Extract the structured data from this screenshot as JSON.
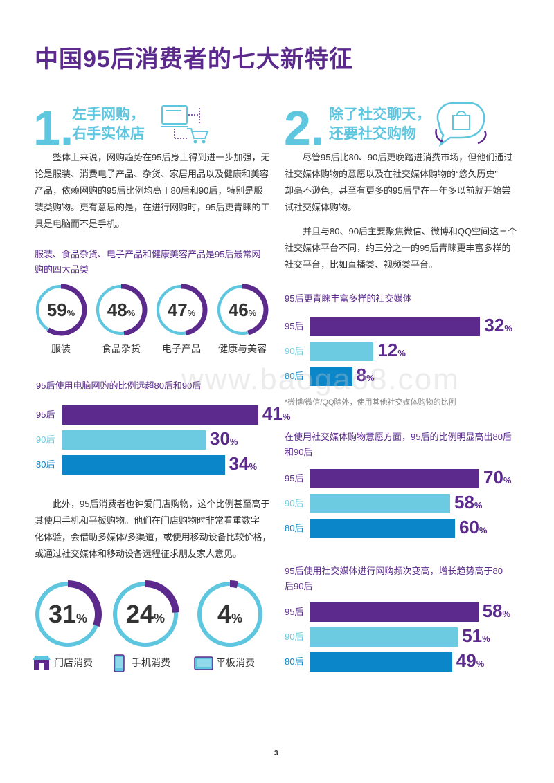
{
  "title": "中国95后消费者的七大新特征",
  "section1": {
    "num": "1.",
    "head_line1": "左手网购，",
    "head_line2": "右手实体店",
    "para1": [
      "整体上来说，网购趋势在95后身上得到进一步加强，无",
      "论是服装、消费电子产品、杂货、家居用品以及健康和美容",
      "产品，依赖网购的95后比例均高于80后和90后，特别是服",
      "装类购物。更有意思的是，在进行网购时，95后更青睐的工",
      "具是电脑而不是手机。"
    ],
    "chart1_title": [
      "服装、食品杂货、电子产品和健康美容产品是95后最常网",
      "购的四大品类"
    ],
    "circles": [
      {
        "value": "59",
        "unit": "%",
        "label": "服装",
        "fraction": 0.59
      },
      {
        "value": "48",
        "unit": "%",
        "label": "食品杂货",
        "fraction": 0.48
      },
      {
        "value": "47",
        "unit": "%",
        "label": "电子产品",
        "fraction": 0.47
      },
      {
        "value": "46",
        "unit": "%",
        "label": "健康与美容",
        "fraction": 0.46
      }
    ],
    "chart2_title": "95后使用电脑网购的比例远超80后和90后",
    "chart2_bars": [
      {
        "label": "95后",
        "value": "41",
        "unit": "%",
        "num": 41
      },
      {
        "label": "90后",
        "value": "30",
        "unit": "%",
        "num": 30
      },
      {
        "label": "80后",
        "value": "34",
        "unit": "%",
        "num": 34
      }
    ],
    "para2": [
      "此外，95后消费者也钟爱门店购物，这个比例甚至高于",
      "其使用手机和平板购物。他们在门店购物时非常看重数字",
      "化体验，会借助多媒体/多渠道，或使用移动设备比较价格，",
      "或通过社交媒体和移动设备远程征求朋友家人意见。"
    ],
    "circles2": [
      {
        "value": "31",
        "unit": "%",
        "label": "门店消费",
        "icon": "store-icon",
        "fraction": 0.31
      },
      {
        "value": "24",
        "unit": "%",
        "label": "手机消费",
        "icon": "phone-icon",
        "fraction": 0.24
      },
      {
        "value": "4",
        "unit": "%",
        "label": "平板消费",
        "icon": "tablet-icon",
        "fraction": 0.04
      }
    ]
  },
  "section2": {
    "num": "2.",
    "head_line1": "除了社交聊天，",
    "head_line2": "还要社交购物",
    "para1": [
      "尽管95后比80、90后更晚踏进消费市场，但他们通过",
      "社交媒体购物的意愿以及在社交媒体购物的“悠久历史”",
      "却毫不逊色，甚至有更多的95后早在一年多以前就开始尝",
      "试社交媒体购物。"
    ],
    "para2": [
      "并且与80、90后主要聚焦微信、微博和QQ空间这三个",
      "社交媒体平台不同，约三分之一的95后青睐更丰富多样的",
      "社交平台，比如直播类、视频类平台。"
    ],
    "chart3_title": "95后更青睐丰富多样的社交媒体",
    "chart3_bars": [
      {
        "label": "95后",
        "value": "32",
        "unit": "%",
        "num": 32
      },
      {
        "label": "90后",
        "value": "12",
        "unit": "%",
        "num": 12
      },
      {
        "label": "80后",
        "value": "8",
        "unit": "%",
        "num": 8
      }
    ],
    "chart3_note": "*微博/微信/QQ除外，使用其他社交媒体购物的比例",
    "chart4_title": [
      "在使用社交媒体购物意愿方面，95后的比例明显高出80后",
      "和90后"
    ],
    "chart4_bars": [
      {
        "label": "95后",
        "value": "70",
        "unit": "%",
        "num": 70
      },
      {
        "label": "90后",
        "value": "58",
        "unit": "%",
        "num": 58
      },
      {
        "label": "80后",
        "value": "60",
        "unit": "%",
        "num": 60
      }
    ],
    "chart5_title": [
      "95后使用社交媒体进行网购频次变高，增长趋势高于80",
      "后90后"
    ],
    "chart5_bars": [
      {
        "label": "95后",
        "value": "58",
        "unit": "%",
        "num": 58
      },
      {
        "label": "90后",
        "value": "51",
        "unit": "%",
        "num": 51
      },
      {
        "label": "80后",
        "value": "49",
        "unit": "%",
        "num": 49
      }
    ]
  },
  "watermark": "www.baogao8.com",
  "page_number": "3",
  "colors": {
    "purple": "#5b2a8c",
    "cyan": "#5ec6de",
    "light_bar": "#6ccbe0",
    "blue_bar": "#0a86c9"
  }
}
